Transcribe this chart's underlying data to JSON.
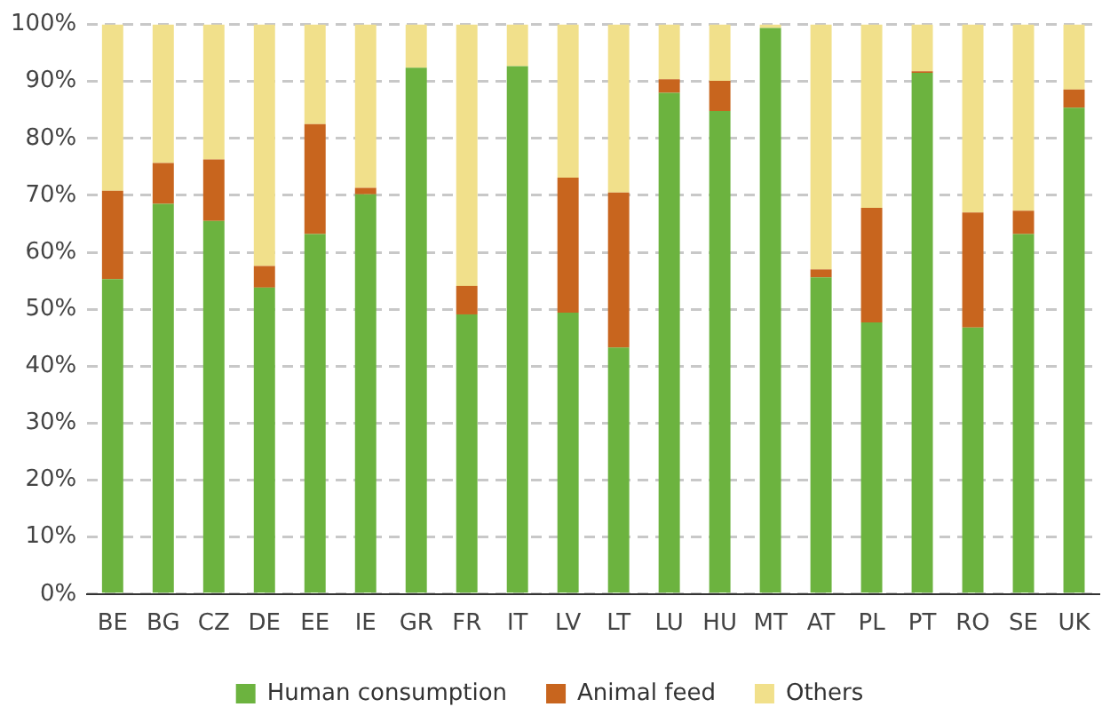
{
  "chart_data": {
    "type": "bar",
    "stacked": true,
    "categories": [
      "BE",
      "BG",
      "CZ",
      "DE",
      "EE",
      "IE",
      "GR",
      "FR",
      "IT",
      "LV",
      "LT",
      "LU",
      "HU",
      "MT",
      "AT",
      "PL",
      "PT",
      "RO",
      "SE",
      "UK"
    ],
    "series": [
      {
        "name": "Human consumption",
        "color": "#6cb33f",
        "values": [
          55.3,
          68.5,
          65.5,
          53.8,
          63.2,
          70.2,
          92.4,
          49.1,
          92.7,
          49.4,
          43.3,
          88,
          84.8,
          99.4,
          55.6,
          47.7,
          91.5,
          46.8,
          63.2,
          85.4
        ]
      },
      {
        "name": "Animal feed",
        "color": "#c8651e",
        "values": [
          15.5,
          7.2,
          10.8,
          3.8,
          19.3,
          1.1,
          0,
          5,
          0,
          23.7,
          27.2,
          2.4,
          5.3,
          0,
          1.4,
          20.1,
          0.3,
          20.2,
          4.1,
          3.2
        ]
      },
      {
        "name": "Others",
        "color": "#f1e08b",
        "values": [
          29.2,
          24.3,
          23.7,
          42.4,
          17.5,
          28.7,
          7.6,
          45.9,
          7.3,
          26.9,
          29.5,
          9.6,
          9.9,
          0.6,
          43,
          32.2,
          8.2,
          33,
          32.7,
          11.4
        ]
      }
    ],
    "ylim": [
      0,
      100
    ],
    "yticks": [
      {
        "value": 0,
        "label": "0%"
      },
      {
        "value": 10,
        "label": "10%"
      },
      {
        "value": 20,
        "label": "20%"
      },
      {
        "value": 30,
        "label": "30%"
      },
      {
        "value": 40,
        "label": "40%"
      },
      {
        "value": 50,
        "label": "50%"
      },
      {
        "value": 60,
        "label": "60%"
      },
      {
        "value": 70,
        "label": "70%"
      },
      {
        "value": 80,
        "label": "80%"
      },
      {
        "value": 90,
        "label": "90%"
      },
      {
        "value": 100,
        "label": "100%"
      }
    ],
    "grid": "y",
    "legend": "bottom"
  }
}
